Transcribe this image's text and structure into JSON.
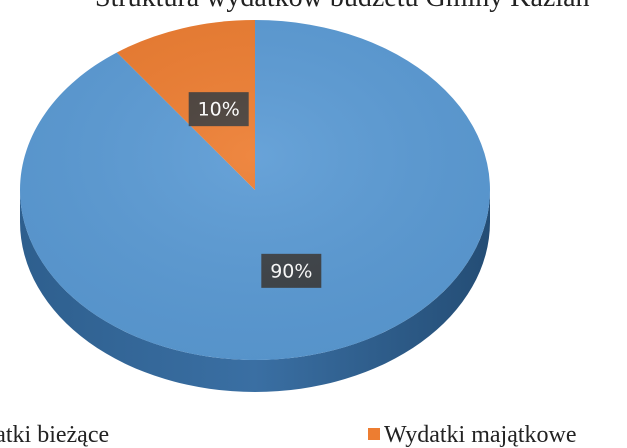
{
  "chart_data": {
    "type": "pie",
    "title": "Struktura wydatków budżetu Gminy Kaźlan",
    "categories": [
      "Wydatki bieżące",
      "Wydatki majątkowe"
    ],
    "values": [
      90,
      10
    ],
    "value_labels": [
      "90%",
      "10%"
    ],
    "colors": [
      "#5b9bd5",
      "#ed7d31"
    ],
    "legend": "bottom"
  }
}
